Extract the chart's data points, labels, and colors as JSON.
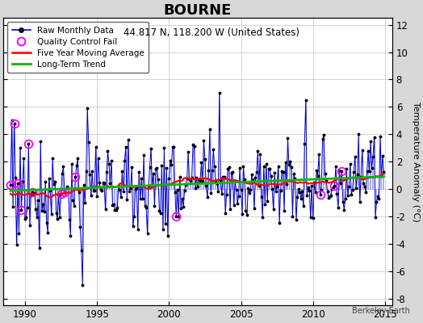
{
  "title": "BOURNE",
  "subtitle": "44.817 N, 118.200 W (United States)",
  "ylabel": "Temperature Anomaly (°C)",
  "credit": "Berkeley Earth",
  "xlim": [
    1988.5,
    2015.5
  ],
  "ylim": [
    -8.5,
    12.5
  ],
  "yticks": [
    -8,
    -6,
    -4,
    -2,
    0,
    2,
    4,
    6,
    8,
    10,
    12
  ],
  "xticks": [
    1990,
    1995,
    2000,
    2005,
    2010,
    2015
  ],
  "plot_bg_color": "#ffffff",
  "fig_bg_color": "#d8d8d8",
  "raw_color": "#0000cc",
  "stem_color": "#8888ff",
  "moving_avg_color": "#ff0000",
  "trend_color": "#00bb00",
  "qc_color": "#ff00ff",
  "trend_slope": 0.04,
  "trend_intercept": 0.3
}
